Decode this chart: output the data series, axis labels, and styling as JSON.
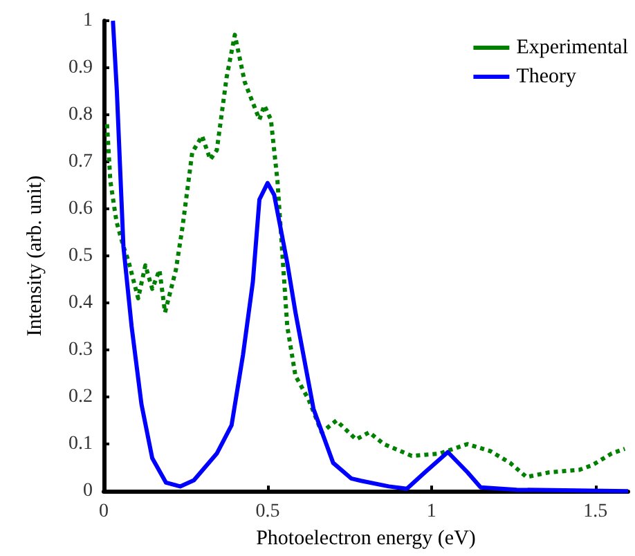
{
  "chart_data": {
    "type": "line",
    "xlabel": "Photoelectron energy (eV)",
    "ylabel": "Intensity (arb. unit)",
    "xlim": [
      0,
      1.6
    ],
    "ylim": [
      0,
      1
    ],
    "xticks": [
      0,
      0.5,
      1,
      1.5
    ],
    "yticks": [
      0,
      0.1,
      0.2,
      0.3,
      0.4,
      0.5,
      0.6,
      0.7,
      0.8,
      0.9,
      1
    ],
    "grid": false,
    "legend": "top right",
    "marker": "none",
    "series": [
      {
        "name": "Experimental",
        "color": "#008000",
        "line_style": "dotted",
        "x": [
          0.01,
          0.02,
          0.035,
          0.04,
          0.06,
          0.075,
          0.105,
          0.127,
          0.148,
          0.17,
          0.187,
          0.22,
          0.24,
          0.27,
          0.3,
          0.325,
          0.345,
          0.375,
          0.4,
          0.43,
          0.475,
          0.49,
          0.51,
          0.53,
          0.56,
          0.585,
          0.625,
          0.665,
          0.71,
          0.77,
          0.81,
          0.855,
          0.94,
          1.025,
          1.11,
          1.18,
          1.24,
          1.29,
          1.36,
          1.45,
          1.49,
          1.55,
          1.59
        ],
        "values": [
          0.78,
          0.66,
          0.59,
          0.57,
          0.52,
          0.49,
          0.41,
          0.48,
          0.43,
          0.47,
          0.38,
          0.47,
          0.56,
          0.72,
          0.755,
          0.705,
          0.725,
          0.88,
          0.97,
          0.87,
          0.79,
          0.82,
          0.79,
          0.66,
          0.35,
          0.245,
          0.195,
          0.125,
          0.15,
          0.11,
          0.125,
          0.1,
          0.075,
          0.08,
          0.1,
          0.085,
          0.06,
          0.03,
          0.04,
          0.045,
          0.055,
          0.08,
          0.09
        ]
      },
      {
        "name": "Theory",
        "color": "#0000ff",
        "line_style": "solid",
        "x": [
          0.028,
          0.04,
          0.06,
          0.085,
          0.115,
          0.148,
          0.19,
          0.233,
          0.275,
          0.345,
          0.39,
          0.425,
          0.455,
          0.475,
          0.5,
          0.52,
          0.56,
          0.585,
          0.64,
          0.7,
          0.755,
          0.785,
          0.87,
          0.925,
          0.98,
          1.05,
          1.11,
          1.15,
          1.26,
          1.6
        ],
        "values": [
          1,
          0.85,
          0.52,
          0.35,
          0.185,
          0.07,
          0.018,
          0.01,
          0.023,
          0.08,
          0.14,
          0.29,
          0.445,
          0.62,
          0.655,
          0.63,
          0.485,
          0.38,
          0.175,
          0.06,
          0.027,
          0.022,
          0.01,
          0.005,
          0.04,
          0.083,
          0.04,
          0.008,
          0.003,
          0
        ]
      }
    ]
  }
}
